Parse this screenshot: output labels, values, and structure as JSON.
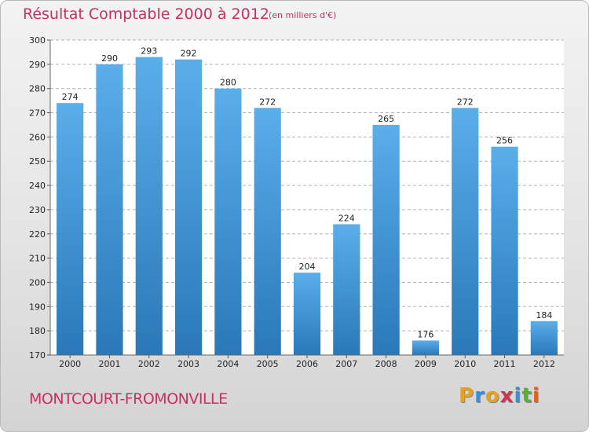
{
  "header": {
    "title": "Résultat Comptable 2000 à 2012",
    "subtitle": "(en milliers d'€)"
  },
  "footer": {
    "commune": "MONTCOURT-FROMONVILLE",
    "logo": {
      "letters": [
        "P",
        "r",
        "o",
        "x",
        "i",
        "t",
        "i"
      ],
      "colors": [
        "#e8a020",
        "#3a8fd8",
        "#e8a020",
        "#d83050",
        "#3a8fd8",
        "#58b030",
        "#e86020"
      ]
    }
  },
  "chart_data": {
    "type": "bar",
    "title": "Résultat Comptable 2000 à 2012",
    "subtitle": "(en milliers d'€)",
    "categories": [
      "2000",
      "2001",
      "2002",
      "2003",
      "2004",
      "2005",
      "2006",
      "2007",
      "2008",
      "2009",
      "2010",
      "2011",
      "2012"
    ],
    "values": [
      274,
      290,
      293,
      292,
      280,
      272,
      204,
      224,
      265,
      176,
      272,
      256,
      184
    ],
    "ylim": [
      170,
      300
    ],
    "yticks": [
      170,
      180,
      190,
      200,
      210,
      220,
      230,
      240,
      250,
      260,
      270,
      280,
      290,
      300
    ],
    "grid": true,
    "bar_color_top": "#5aaeea",
    "bar_color_bottom": "#2a78b8",
    "grid_color": "#b0b0b0"
  }
}
